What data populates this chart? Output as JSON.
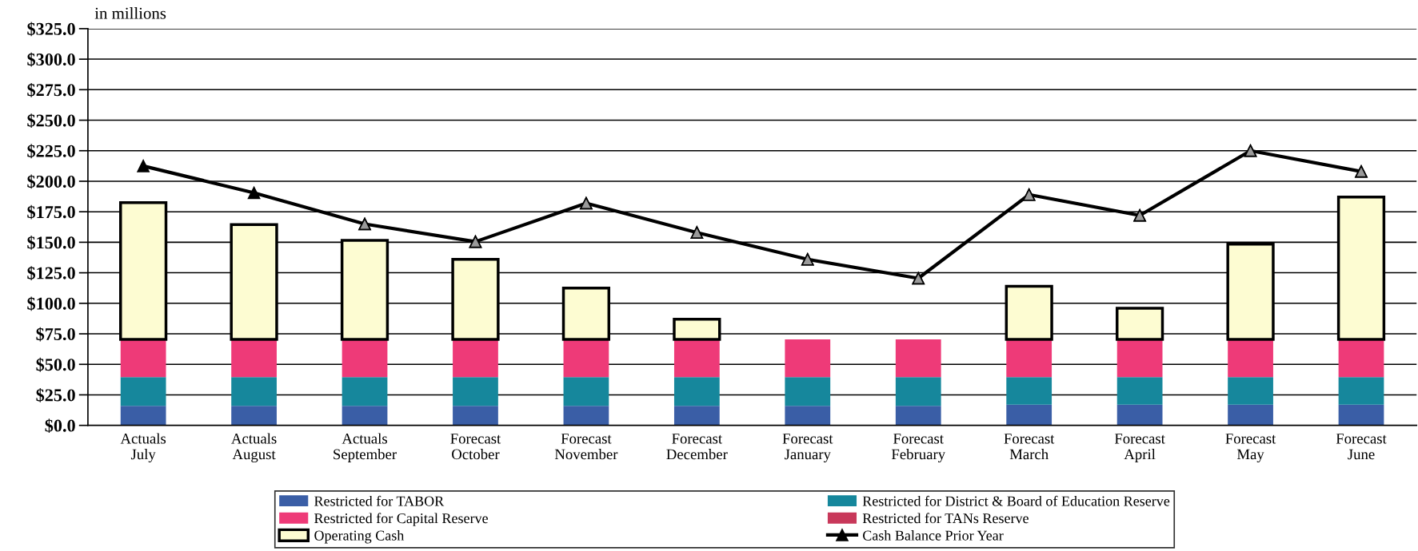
{
  "chart_data": {
    "type": "bar",
    "ylabel": "in millions",
    "categories": [
      "Actuals\nJuly",
      "Actuals\nAugust",
      "Actuals\nSeptember",
      "Forecast\nOctober",
      "Forecast\nNovember",
      "Forecast\nDecember",
      "Forecast\nJanuary",
      "Forecast\nFebruary",
      "Forecast\nMarch",
      "Forecast\nApril",
      "Forecast\nMay",
      "Forecast\nJune"
    ],
    "stacked": true,
    "series": [
      {
        "name": "Restricted for TABOR",
        "color": "#3a5ea6",
        "values": [
          16,
          16,
          16,
          16,
          16,
          16,
          16,
          16,
          17,
          17,
          17,
          17
        ]
      },
      {
        "name": "Restricted for District & Board of Education Reserve",
        "color": "#16879c",
        "values": [
          23.5,
          23.5,
          23.5,
          23.5,
          23.5,
          23.5,
          23.5,
          23.5,
          22.5,
          22.5,
          22.5,
          22.5
        ]
      },
      {
        "name": "Restricted for Capital Reserve",
        "color": "#ee3a78",
        "values": [
          31,
          31,
          31,
          31,
          31,
          31,
          31,
          31,
          31,
          31,
          31,
          31
        ]
      },
      {
        "name": "Restricted for TANs Reserve",
        "color": "#c8385a",
        "values": [
          null,
          null,
          null,
          null,
          null,
          null,
          null,
          null,
          null,
          null,
          null,
          null
        ]
      },
      {
        "name": "Operating Cash",
        "color": "#fdfcd2",
        "values": [
          112,
          94,
          81,
          65.5,
          42,
          16.5,
          null,
          null,
          43.5,
          25.5,
          78,
          116.5
        ]
      },
      {
        "name": "Cash Balance Prior Year",
        "type": "line",
        "color": "#000000",
        "colors": [
          "#000000",
          "#000000",
          "#9a9a9a",
          "#9a9a9a",
          "#9a9a9a",
          "#9a9a9a",
          "#9a9a9a",
          "#9a9a9a",
          "#9a9a9a",
          "#9a9a9a",
          "#9a9a9a",
          "#9a9a9a"
        ],
        "values": [
          212.5,
          190.5,
          165,
          150.5,
          182,
          158,
          136,
          120.5,
          189,
          172,
          225,
          208
        ]
      }
    ],
    "marker": "triangle",
    "ylim": [
      0,
      325
    ],
    "yticks": [
      {
        "value": 0,
        "label": "$0.0"
      },
      {
        "value": 25,
        "label": "$25.0"
      },
      {
        "value": 50,
        "label": "$50.0"
      },
      {
        "value": 75,
        "label": "$75.0"
      },
      {
        "value": 100,
        "label": "$100.0"
      },
      {
        "value": 125,
        "label": "$125.0"
      },
      {
        "value": 150,
        "label": "$150.0"
      },
      {
        "value": 175,
        "label": "$175.0"
      },
      {
        "value": 200,
        "label": "$200.0"
      },
      {
        "value": 225,
        "label": "$225.0"
      },
      {
        "value": 250,
        "label": "$250.0"
      },
      {
        "value": 275,
        "label": "$275.0"
      },
      {
        "value": 300,
        "label": "$300.0"
      },
      {
        "value": 325,
        "label": "$325.0"
      }
    ],
    "grid": "y",
    "legend": "bottom"
  }
}
